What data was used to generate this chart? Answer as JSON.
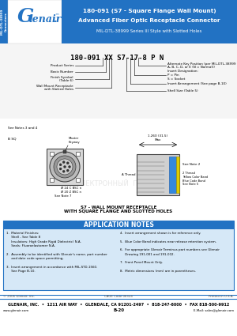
{
  "bg_color": "#ffffff",
  "header_blue": "#2272c3",
  "sidebar_blue": "#2272c3",
  "title_line1": "180-091 (S7 - Square Flange Wall Mount)",
  "title_line2": "Advanced Fiber Optic Receptacle Connector",
  "title_line3": "MIL-DTL-38999 Series III Style with Slotted Holes",
  "sidebar_text": "MIL-DTL-38999\nConnectors",
  "part_number_label": "180-091 XX S7-17-8 P N",
  "sub_caption1": "S7 - WALL MOUNT RECEPTACLE",
  "sub_caption2": "WITH SQUARE FLANGE AND SLOTTED HOLES",
  "notes_title": "APPLICATION NOTES",
  "notes_bg": "#d6e8f7",
  "notes_title_bg": "#2272c3",
  "footer_copyright": "© 2006 Glenair, Inc.",
  "footer_cage": "CAGE Code 06324",
  "footer_printed": "Printed in U.S.A.",
  "footer_main": "GLENAIR, INC.  •  1211 AIR WAY  •  GLENDALE, CA 91201-2497  •  818-247-6000  •  FAX 818-500-9912",
  "footer_web": "www.glenair.com",
  "footer_page": "B-20",
  "footer_email": "E-Mail: sales@glenair.com"
}
